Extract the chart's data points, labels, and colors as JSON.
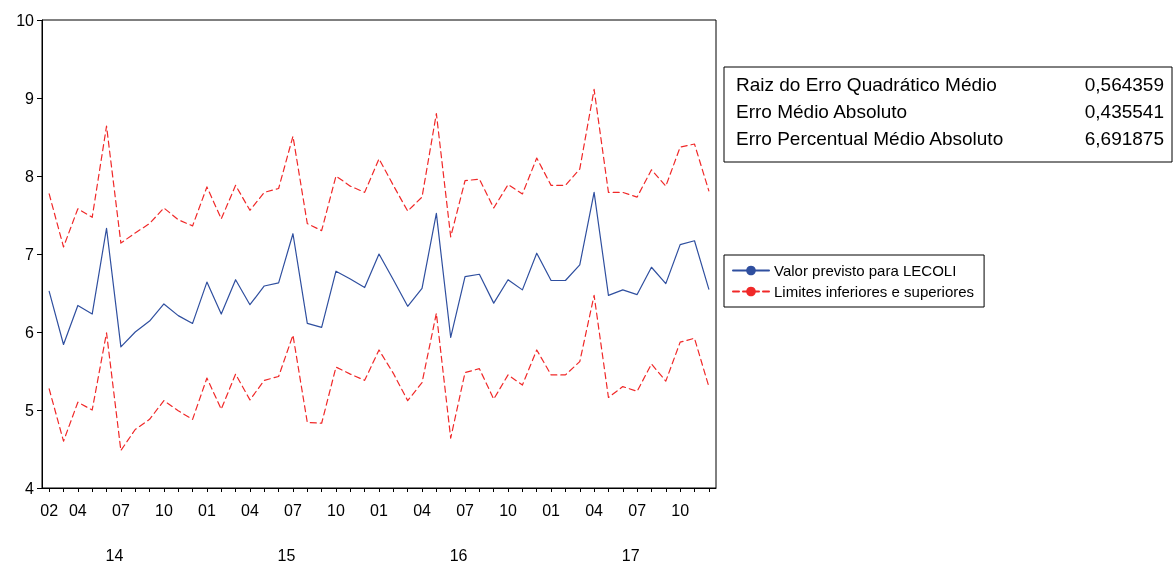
{
  "chart_data": {
    "type": "line",
    "categories": [
      "02",
      null,
      "04",
      null,
      null,
      "07",
      null,
      null,
      "10",
      null,
      null,
      "01",
      null,
      null,
      "04",
      null,
      null,
      "07",
      null,
      null,
      "10",
      null,
      null,
      "01",
      null,
      null,
      "04",
      null,
      null,
      "07",
      null,
      null,
      "10",
      null,
      null,
      "01",
      null,
      null,
      "04",
      null,
      null,
      "07",
      null,
      null,
      "10",
      null,
      null
    ],
    "series": [
      {
        "name": "Valor previsto para LECOLI",
        "color": "#2f4f9f",
        "line_style": "solid",
        "values": [
          6.52,
          5.84,
          6.34,
          6.23,
          7.33,
          5.81,
          6.0,
          6.14,
          6.36,
          6.21,
          6.11,
          6.64,
          6.23,
          6.67,
          6.35,
          6.59,
          6.63,
          7.26,
          6.11,
          6.06,
          6.78,
          6.68,
          6.57,
          7.0,
          6.67,
          6.33,
          6.56,
          7.52,
          5.93,
          6.71,
          6.74,
          6.37,
          6.67,
          6.54,
          7.01,
          6.66,
          6.66,
          6.86,
          7.79,
          6.47,
          6.54,
          6.48,
          6.83,
          6.62,
          7.12,
          7.17,
          6.55
        ]
      },
      {
        "name": "Limites inferiores e superiores",
        "color": "#f02828",
        "line_style": "dashed",
        "values": [
          7.77,
          7.09,
          7.58,
          7.47,
          8.64,
          7.14,
          7.27,
          7.39,
          7.59,
          7.44,
          7.36,
          7.86,
          7.45,
          7.88,
          7.56,
          7.79,
          7.84,
          8.51,
          7.39,
          7.3,
          8.0,
          7.87,
          7.79,
          8.22,
          7.88,
          7.55,
          7.73,
          8.8,
          7.22,
          7.94,
          7.96,
          7.59,
          7.89,
          7.77,
          8.23,
          7.88,
          7.88,
          8.09,
          9.11,
          7.79,
          7.79,
          7.73,
          8.08,
          7.87,
          8.37,
          8.41,
          7.81
        ]
      },
      {
        "color": "#f02828",
        "line_style": "dashed",
        "values": [
          5.27,
          4.6,
          5.1,
          5.0,
          5.99,
          4.48,
          4.75,
          4.88,
          5.12,
          4.99,
          4.88,
          5.41,
          5.01,
          5.46,
          5.13,
          5.38,
          5.43,
          5.96,
          4.84,
          4.83,
          5.55,
          5.46,
          5.38,
          5.77,
          5.47,
          5.12,
          5.35,
          6.24,
          4.64,
          5.48,
          5.53,
          5.14,
          5.45,
          5.32,
          5.77,
          5.45,
          5.45,
          5.62,
          6.47,
          5.16,
          5.3,
          5.24,
          5.59,
          5.37,
          5.87,
          5.92,
          5.3
        ]
      }
    ],
    "ylim": [
      4,
      10
    ],
    "yticks": [
      4,
      5,
      6,
      7,
      8,
      9,
      10
    ],
    "grid": false,
    "legend": "right",
    "marker": "none",
    "annotations": [
      "Raiz do Erro Quadrático Médio",
      "0,564359",
      "Erro Médio Absoluto",
      "0,435541",
      "Erro Percentual Médio Absoluto",
      "6,691875",
      "14",
      "15",
      "16",
      "17"
    ]
  }
}
